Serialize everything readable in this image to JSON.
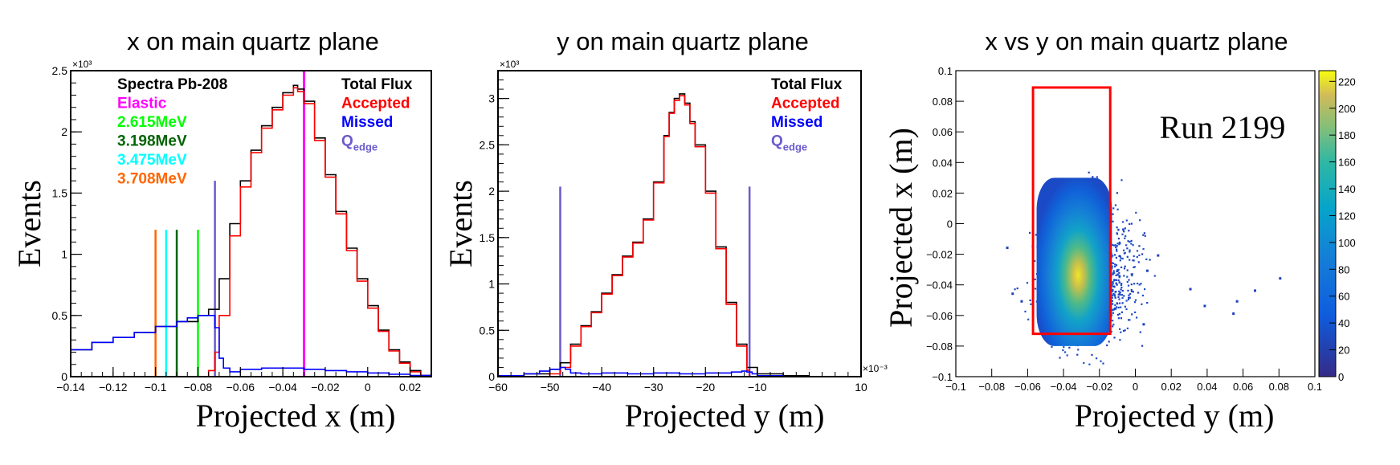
{
  "colors": {
    "total": "#000000",
    "accepted": "#ff0000",
    "missed": "#0000ff",
    "elastic": "#ff00ff",
    "l2615": "#00ff00",
    "l3198": "#006400",
    "l3475": "#00ffff",
    "l3708": "#ff6600",
    "qedge": "#6a5acd",
    "box": "#ff0000"
  },
  "chart_data": [
    {
      "type": "histogram",
      "title": "x on main quartz plane",
      "xlabel": "Projected x (m)",
      "ylabel": "Events",
      "y_multiplier": "×10³",
      "xlim": [
        -0.14,
        0.03
      ],
      "ylim": [
        0,
        2.5
      ],
      "xticks": [
        -0.14,
        -0.12,
        -0.1,
        -0.08,
        -0.06,
        -0.04,
        -0.02,
        0,
        0.02
      ],
      "xtick_labels": [
        "−0.14",
        "−0.12",
        "−0.1",
        "−0.08",
        "−0.06",
        "−0.04",
        "−0.02",
        "0",
        "0.02"
      ],
      "yticks": [
        0,
        0.5,
        1,
        1.5,
        2,
        2.5
      ],
      "ytick_labels": [
        "0",
        "0.5",
        "1",
        "1.5",
        "2",
        "2.5"
      ],
      "legend_left": [
        {
          "text": "Spectra Pb-208",
          "color": "#000000"
        },
        {
          "text": "Elastic",
          "color": "#ff00ff"
        },
        {
          "text": "2.615MeV",
          "color": "#00ff00"
        },
        {
          "text": "3.198MeV",
          "color": "#006400"
        },
        {
          "text": "3.475MeV",
          "color": "#00ffff"
        },
        {
          "text": "3.708MeV",
          "color": "#ff6600"
        }
      ],
      "legend_right": [
        {
          "text": "Total Flux",
          "color": "#000000"
        },
        {
          "text": "Accepted",
          "color": "#ff0000"
        },
        {
          "text": "Missed",
          "color": "#0000ff"
        },
        {
          "text": "Q",
          "sub": "edge",
          "color": "#6a5acd"
        }
      ],
      "series": [
        {
          "name": "Total Flux",
          "x": [
            -0.14,
            -0.13,
            -0.12,
            -0.11,
            -0.1,
            -0.09,
            -0.08,
            -0.075,
            -0.07,
            -0.065,
            -0.06,
            -0.055,
            -0.05,
            -0.045,
            -0.04,
            -0.035,
            -0.033,
            -0.03,
            -0.025,
            -0.02,
            -0.015,
            -0.01,
            -0.005,
            0,
            0.005,
            0.01,
            0.015,
            0.02,
            0.025,
            0.03
          ],
          "y": [
            0.22,
            0.28,
            0.32,
            0.36,
            0.41,
            0.45,
            0.5,
            0.55,
            0.8,
            1.25,
            1.6,
            1.85,
            2.05,
            2.2,
            2.32,
            2.38,
            2.35,
            2.25,
            1.95,
            1.65,
            1.35,
            1.05,
            0.8,
            0.58,
            0.38,
            0.22,
            0.12,
            0.05,
            0.01,
            0.0
          ]
        },
        {
          "name": "Accepted",
          "x": [
            -0.14,
            -0.09,
            -0.08,
            -0.075,
            -0.072,
            -0.07,
            -0.065,
            -0.06,
            -0.055,
            -0.05,
            -0.045,
            -0.04,
            -0.035,
            -0.033,
            -0.03,
            -0.025,
            -0.02,
            -0.015,
            -0.01,
            -0.005,
            0,
            0.005,
            0.01,
            0.015,
            0.02,
            0.025,
            0.03
          ],
          "y": [
            0,
            0,
            0,
            0.05,
            0.2,
            0.5,
            1.15,
            1.55,
            1.83,
            2.03,
            2.18,
            2.3,
            2.36,
            2.33,
            2.23,
            1.93,
            1.63,
            1.33,
            1.03,
            0.78,
            0.56,
            0.37,
            0.21,
            0.11,
            0.04,
            0.01,
            0.0
          ]
        },
        {
          "name": "Missed",
          "x": [
            -0.14,
            -0.13,
            -0.12,
            -0.11,
            -0.1,
            -0.09,
            -0.085,
            -0.08,
            -0.075,
            -0.072,
            -0.07,
            -0.068,
            -0.065,
            -0.06,
            -0.05,
            -0.04,
            -0.03,
            -0.02,
            -0.01,
            0,
            0.01,
            0.02,
            0.03
          ],
          "y": [
            0.22,
            0.28,
            0.32,
            0.36,
            0.41,
            0.45,
            0.48,
            0.5,
            0.5,
            0.4,
            0.15,
            0.07,
            0.04,
            0.06,
            0.07,
            0.07,
            0.06,
            0.05,
            0.04,
            0.03,
            0.02,
            0.01,
            0.0
          ]
        }
      ],
      "vertical_lines": [
        {
          "name": "Elastic",
          "x": -0.03,
          "y_top": 2.5,
          "color": "#ff00ff"
        },
        {
          "name": "3.708MeV",
          "x": -0.1,
          "y_top": 1.2,
          "color": "#ff6600"
        },
        {
          "name": "3.475MeV",
          "x": -0.095,
          "y_top": 1.2,
          "color": "#00ffff"
        },
        {
          "name": "3.198MeV",
          "x": -0.09,
          "y_top": 1.2,
          "color": "#006400"
        },
        {
          "name": "2.615MeV",
          "x": -0.08,
          "y_top": 1.2,
          "color": "#00ff00"
        },
        {
          "name": "Qedge",
          "x": -0.072,
          "y_top": 1.6,
          "color": "#6a5acd"
        }
      ]
    },
    {
      "type": "histogram",
      "title": "y on main quartz plane",
      "xlabel": "Projected y (m)",
      "ylabel": "Events",
      "x_multiplier": "×10⁻³",
      "y_multiplier": "×10³",
      "xlim": [
        -60,
        10
      ],
      "ylim": [
        0,
        3.3
      ],
      "xticks": [
        -60,
        -50,
        -40,
        -30,
        -20,
        -10,
        10
      ],
      "xtick_labels": [
        "−60",
        "−50",
        "−40",
        "−30",
        "−20",
        "−10",
        "10"
      ],
      "yticks": [
        0,
        0.5,
        1,
        1.5,
        2,
        2.5,
        3
      ],
      "ytick_labels": [
        "0",
        "0.5",
        "1",
        "1.5",
        "2",
        "2.5",
        "3"
      ],
      "legend_right": [
        {
          "text": "Total Flux",
          "color": "#000000"
        },
        {
          "text": "Accepted",
          "color": "#ff0000"
        },
        {
          "text": "Missed",
          "color": "#0000ff"
        },
        {
          "text": "Q",
          "sub": "edge",
          "color": "#6a5acd"
        }
      ],
      "series": [
        {
          "name": "Total Flux",
          "x": [
            -60,
            -55,
            -50,
            -48,
            -46,
            -44,
            -42,
            -40,
            -38,
            -36,
            -34,
            -32,
            -30,
            -28,
            -27,
            -26,
            -25,
            -24,
            -23,
            -22,
            -20,
            -18,
            -16,
            -14,
            -12,
            -10,
            -5,
            0,
            5,
            10
          ],
          "y": [
            0.01,
            0.03,
            0.08,
            0.15,
            0.35,
            0.55,
            0.7,
            0.9,
            1.1,
            1.3,
            1.45,
            1.7,
            2.1,
            2.6,
            2.85,
            3.0,
            3.05,
            2.95,
            2.75,
            2.5,
            2.0,
            1.4,
            0.8,
            0.35,
            0.1,
            0.03,
            0.01,
            0.0,
            0.0,
            0.0
          ]
        },
        {
          "name": "Accepted",
          "x": [
            -60,
            -52,
            -50,
            -48,
            -46,
            -44,
            -42,
            -40,
            -38,
            -36,
            -34,
            -32,
            -30,
            -28,
            -27,
            -26,
            -25,
            -24,
            -23,
            -22,
            -20,
            -18,
            -16,
            -14,
            -12,
            -11.5,
            -10,
            0,
            10
          ],
          "y": [
            0,
            0,
            0.03,
            0.1,
            0.33,
            0.54,
            0.69,
            0.89,
            1.09,
            1.29,
            1.44,
            1.69,
            2.09,
            2.59,
            2.84,
            2.98,
            3.03,
            2.93,
            2.73,
            2.48,
            1.98,
            1.38,
            0.78,
            0.33,
            0.07,
            0.0,
            0.0,
            0.0,
            0.0
          ]
        },
        {
          "name": "Missed",
          "x": [
            -60,
            -55,
            -52,
            -50,
            -48,
            -47,
            -46,
            -44,
            -40,
            -35,
            -30,
            -25,
            -20,
            -15,
            -13,
            -12,
            -11,
            -10,
            -5,
            0,
            10
          ],
          "y": [
            0.01,
            0.03,
            0.06,
            0.08,
            0.1,
            0.08,
            0.04,
            0.03,
            0.04,
            0.03,
            0.04,
            0.03,
            0.04,
            0.05,
            0.06,
            0.05,
            0.03,
            0.01,
            0.0,
            0.0,
            0.0
          ]
        }
      ],
      "vertical_lines": [
        {
          "name": "Qedge-left",
          "x": -48,
          "y_top": 2.05,
          "color": "#6a5acd"
        },
        {
          "name": "Qedge-right",
          "x": -11.5,
          "y_top": 2.05,
          "color": "#6a5acd"
        }
      ]
    },
    {
      "type": "heatmap",
      "title": "x vs y on main quartz plane",
      "xlabel": "Projected y (m)",
      "ylabel": "Projected x (m)",
      "annotation": "Run 2199",
      "xlim": [
        -0.1,
        0.1
      ],
      "ylim": [
        -0.1,
        0.1
      ],
      "xticks": [
        -0.1,
        -0.08,
        -0.06,
        -0.04,
        -0.02,
        0,
        0.02,
        0.04,
        0.06,
        0.08,
        0.1
      ],
      "xtick_labels": [
        "−0.1",
        "−0.08",
        "−0.06",
        "−0.04",
        "−0.02",
        "0",
        "0.02",
        "0.04",
        "0.06",
        "0.08",
        "0.1"
      ],
      "yticks": [
        -0.1,
        -0.08,
        -0.06,
        -0.04,
        -0.02,
        0,
        0.02,
        0.04,
        0.06,
        0.08,
        0.1
      ],
      "ytick_labels": [
        "−0.1",
        "−0.08",
        "−0.06",
        "−0.04",
        "−0.02",
        "0",
        "0.02",
        "0.04",
        "0.06",
        "0.08",
        "0.1"
      ],
      "colorbar": {
        "min": 0,
        "max": 220,
        "ticks": [
          0,
          20,
          40,
          60,
          80,
          100,
          120,
          140,
          160,
          180,
          200,
          220
        ]
      },
      "acceptance_box": {
        "x_min": -0.057,
        "x_max": -0.014,
        "y_min": -0.072,
        "y_max": 0.089,
        "color": "#ff0000"
      },
      "distribution": {
        "center_y": -0.027,
        "center_x": -0.032,
        "peak_count": 220,
        "core_y_range": [
          -0.055,
          -0.013
        ],
        "core_x_range": [
          -0.08,
          0.03
        ]
      },
      "outlier_points": [
        {
          "y": -0.072,
          "x": -0.015
        },
        {
          "y": -0.069,
          "x": -0.045
        },
        {
          "y": 0.03,
          "x": -0.042
        },
        {
          "y": 0.038,
          "x": -0.053
        },
        {
          "y": 0.054,
          "x": -0.058
        },
        {
          "y": 0.056,
          "x": -0.05
        },
        {
          "y": 0.066,
          "x": -0.043
        },
        {
          "y": 0.08,
          "x": -0.035
        },
        {
          "y": 0.006,
          "x": -0.03
        },
        {
          "y": 0.012,
          "x": -0.02
        },
        {
          "y": -0.064,
          "x": -0.05
        },
        {
          "y": 0.004,
          "x": -0.065
        }
      ]
    }
  ]
}
